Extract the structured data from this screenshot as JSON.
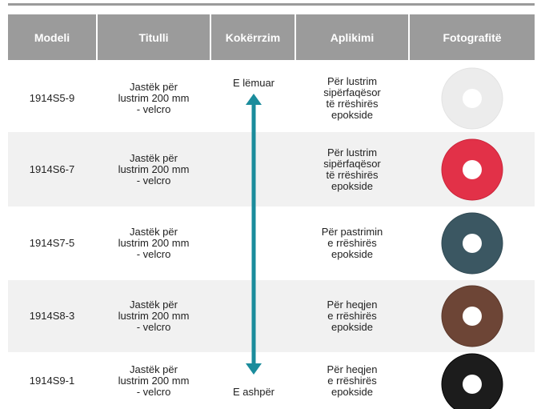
{
  "header": {
    "columns": [
      "Modeli",
      "Titulli",
      "Kokërrzim",
      "Aplikimi",
      "Fotografitë"
    ]
  },
  "grain": {
    "top": "E lëmuar",
    "bottom": "E ashpër"
  },
  "rows": [
    {
      "model": "1914S5-9",
      "title": [
        "Jastëk për",
        "lustrim 200 mm",
        "- velcro"
      ],
      "application": [
        "Për lustrim",
        "sipërfaqësor",
        "të rrëshirës",
        "epokside"
      ]
    },
    {
      "model": "1914S6-7",
      "title": [
        "Jastëk për",
        "lustrim 200 mm",
        "- velcro"
      ],
      "application": [
        "Për lustrim",
        "sipërfaqësor",
        "të rrëshirës",
        "epokside"
      ]
    },
    {
      "model": "1914S7-5",
      "title": [
        "Jastëk për",
        "lustrim 200 mm",
        "- velcro"
      ],
      "application": [
        "Për pastrimin",
        "e rrëshirës",
        "epokside"
      ]
    },
    {
      "model": "1914S8-3",
      "title": [
        "Jastëk për",
        "lustrim 200 mm",
        "- velcro"
      ],
      "application": [
        "Për heqjen",
        "e rrëshirës",
        "epokside"
      ]
    },
    {
      "model": "1914S9-1",
      "title": [
        "Jastëk për",
        "lustrim 200 mm",
        "- velcro"
      ],
      "application": [
        "Për heqjen",
        "e rrëshirës",
        "epokside"
      ]
    }
  ]
}
